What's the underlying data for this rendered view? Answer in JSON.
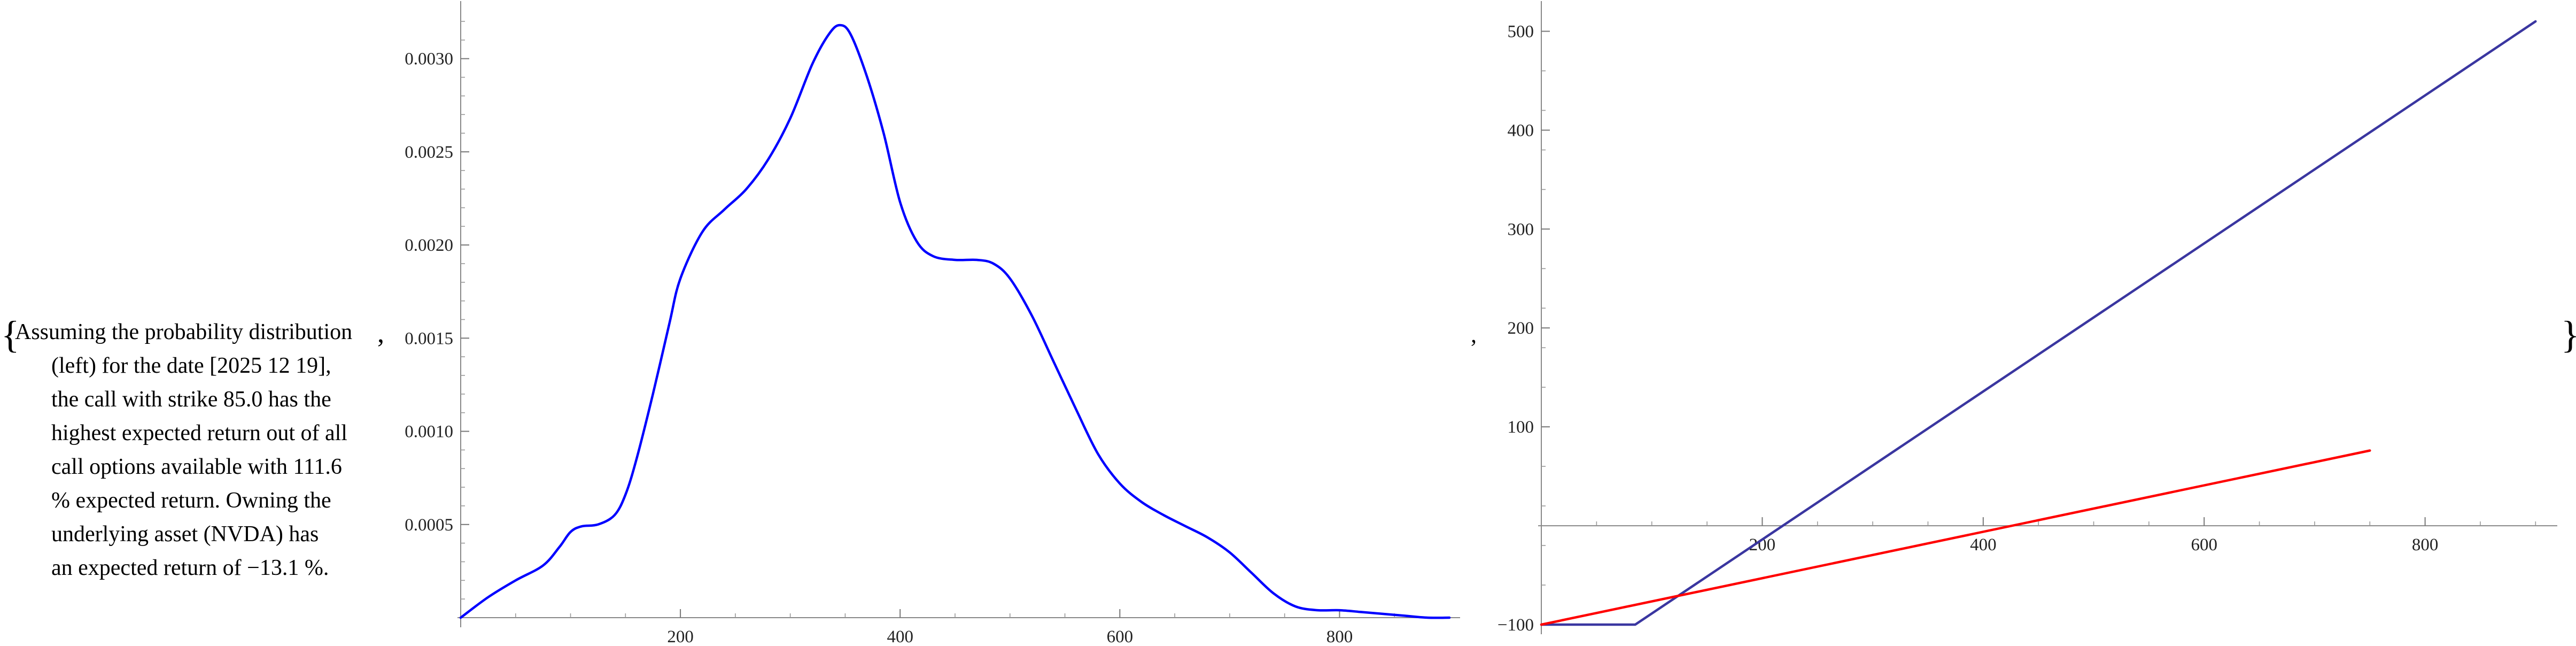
{
  "text": {
    "open_brace": "{",
    "close_brace": "}",
    "comma": ",",
    "lines": [
      "Assuming the probability distribution",
      "(left) for the date [2025 12 19],",
      "the call with strike 85.0 has the",
      "highest expected return out of all",
      "call options available with 111.6",
      "% expected return. Owning the",
      "underlying asset (NVDA) has",
      "an expected return of −13.1 %."
    ]
  },
  "chart_data": [
    {
      "type": "line",
      "title": "",
      "xlabel": "",
      "ylabel": "",
      "xlim": [
        0,
        900
      ],
      "ylim": [
        0,
        0.0032
      ],
      "x_ticks": [
        200,
        400,
        600,
        800
      ],
      "y_ticks": [
        0.0005,
        0.001,
        0.0015,
        0.002,
        0.0025,
        0.003
      ],
      "y_tick_labels": [
        "0.0005",
        "0.0010",
        "0.0015",
        "0.0020",
        "0.0025",
        "0.0030"
      ],
      "grid": false,
      "series": [
        {
          "color": "#0000ff",
          "x": [
            0,
            25,
            50,
            75,
            90,
            100,
            110,
            125,
            140,
            150,
            160,
            175,
            190,
            200,
            220,
            240,
            260,
            280,
            300,
            320,
            335,
            345,
            355,
            370,
            385,
            400,
            415,
            430,
            450,
            470,
            485,
            500,
            520,
            540,
            560,
            580,
            600,
            620,
            640,
            660,
            680,
            700,
            720,
            740,
            760,
            780,
            800,
            820,
            840,
            860,
            880,
            900
          ],
          "y": [
            0.0,
            0.00011,
            0.0002,
            0.00028,
            0.00038,
            0.00046,
            0.00049,
            0.0005,
            0.00055,
            0.00066,
            0.00085,
            0.0012,
            0.00158,
            0.00182,
            0.00207,
            0.00219,
            0.0023,
            0.00246,
            0.00268,
            0.00297,
            0.00313,
            0.00318,
            0.00313,
            0.0029,
            0.0026,
            0.00223,
            0.00202,
            0.00194,
            0.00192,
            0.00192,
            0.0019,
            0.00182,
            0.00162,
            0.00137,
            0.00112,
            0.00088,
            0.00072,
            0.00062,
            0.00055,
            0.00049,
            0.00043,
            0.00035,
            0.00024,
            0.00013,
            6e-05,
            4e-05,
            4e-05,
            3e-05,
            2e-05,
            1e-05,
            0.0,
            0.0
          ]
        }
      ]
    },
    {
      "type": "line",
      "title": "",
      "xlabel": "",
      "ylabel": "",
      "xlim": [
        0,
        910
      ],
      "ylim": [
        -100,
        510
      ],
      "x_ticks": [
        200,
        400,
        600,
        800
      ],
      "y_ticks": [
        -100,
        100,
        200,
        300,
        400,
        500
      ],
      "y_tick_labels": [
        "−100",
        "100",
        "200",
        "300",
        "400",
        "500"
      ],
      "grid": false,
      "series": [
        {
          "color": "#3a36a0",
          "x": [
            0,
            85,
            900
          ],
          "y": [
            -100,
            -100,
            510
          ]
        },
        {
          "color": "#ff0000",
          "x": [
            0,
            750
          ],
          "y": [
            -100,
            76
          ]
        }
      ]
    }
  ]
}
